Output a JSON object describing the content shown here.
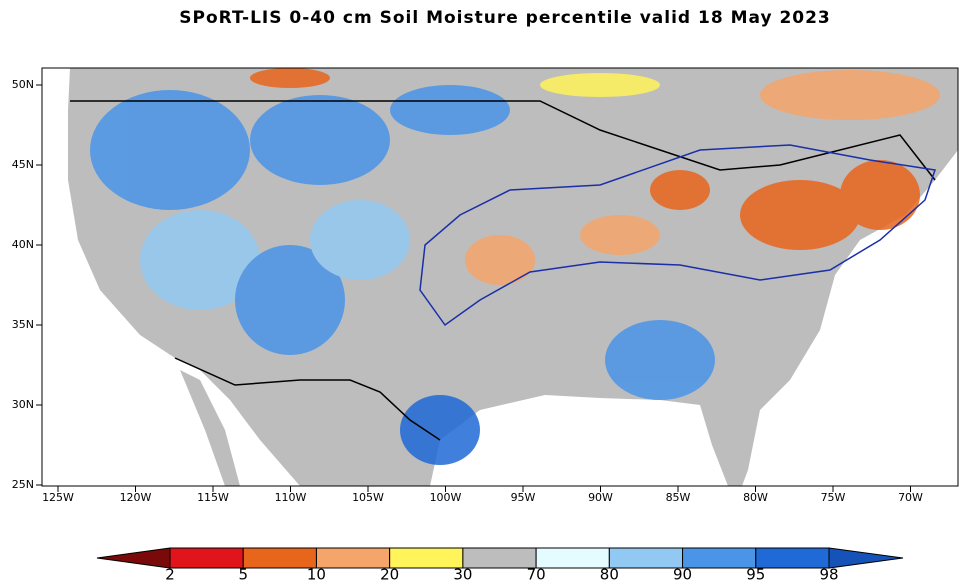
{
  "map": {
    "title": "SPoRT-LIS 0-40 cm Soil Moisture percentile valid 18 May 2023",
    "lat_ticks": [
      {
        "value": 50,
        "label": "50N"
      },
      {
        "value": 45,
        "label": "45N"
      },
      {
        "value": 40,
        "label": "40N"
      },
      {
        "value": 35,
        "label": "35N"
      },
      {
        "value": 30,
        "label": "30N"
      },
      {
        "value": 25,
        "label": "25N"
      }
    ],
    "lon_ticks": [
      {
        "value": -125,
        "label": "125W"
      },
      {
        "value": -120,
        "label": "120W"
      },
      {
        "value": -115,
        "label": "115W"
      },
      {
        "value": -110,
        "label": "110W"
      },
      {
        "value": -105,
        "label": "105W"
      },
      {
        "value": -100,
        "label": "100W"
      },
      {
        "value": -95,
        "label": "95W"
      },
      {
        "value": -90,
        "label": "90W"
      },
      {
        "value": -85,
        "label": "85W"
      },
      {
        "value": -80,
        "label": "80W"
      },
      {
        "value": -75,
        "label": "75W"
      },
      {
        "value": -70,
        "label": "70W"
      }
    ],
    "colorbar": {
      "bounds": [
        2,
        5,
        10,
        20,
        30,
        70,
        80,
        90,
        95,
        98
      ],
      "colors": [
        "#7a0a0a",
        "#e0151b",
        "#e8651c",
        "#f5a56a",
        "#fff45a",
        "#bdbdbd",
        "#e4fbff",
        "#92c9f2",
        "#4a95e8",
        "#1f6ad6",
        "#1553b8"
      ]
    }
  }
}
